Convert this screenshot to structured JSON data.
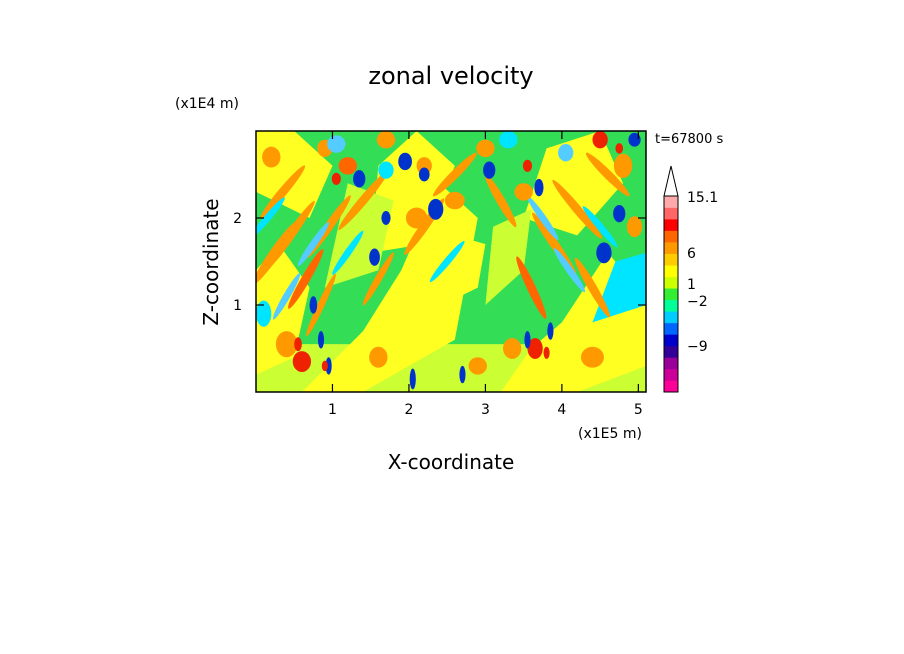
{
  "chart_data": {
    "type": "heatmap",
    "title": "zonal velocity",
    "xlabel": "X-coordinate",
    "ylabel": "Z-coordinate",
    "x_unit": "(x1E5 m)",
    "y_unit": "(x1E4 m)",
    "time_label": "t=67800 s",
    "xlim": [
      0,
      5.1
    ],
    "ylim": [
      0,
      3
    ],
    "x_ticks": [
      "1",
      "2",
      "3",
      "4",
      "5"
    ],
    "y_ticks": [
      "1",
      "2"
    ],
    "colorbar": {
      "labels": [
        "15.1",
        "6",
        "1",
        "−2",
        "−9"
      ],
      "label_values": [
        15.1,
        6,
        1,
        -2,
        -9
      ],
      "colors": [
        "#ff0099",
        "#cc0099",
        "#990099",
        "#330099",
        "#0000cc",
        "#0066ff",
        "#00ccff",
        "#00ff99",
        "#33ee33",
        "#ccff00",
        "#ffff00",
        "#ffcc00",
        "#ff9900",
        "#ff6600",
        "#ff0000",
        "#ff6666",
        "#ffaaaa",
        "#ffffff"
      ]
    },
    "field_colors": {
      "green": "#33dd55",
      "yellow": "#ffff22",
      "lightgreen": "#ccff33",
      "orange": "#ff9900",
      "deep_orange": "#ff6600",
      "red": "#ee2200",
      "cyan": "#00e5ff",
      "light_blue": "#55ccff",
      "blue": "#0033cc",
      "navy": "#000088"
    }
  }
}
